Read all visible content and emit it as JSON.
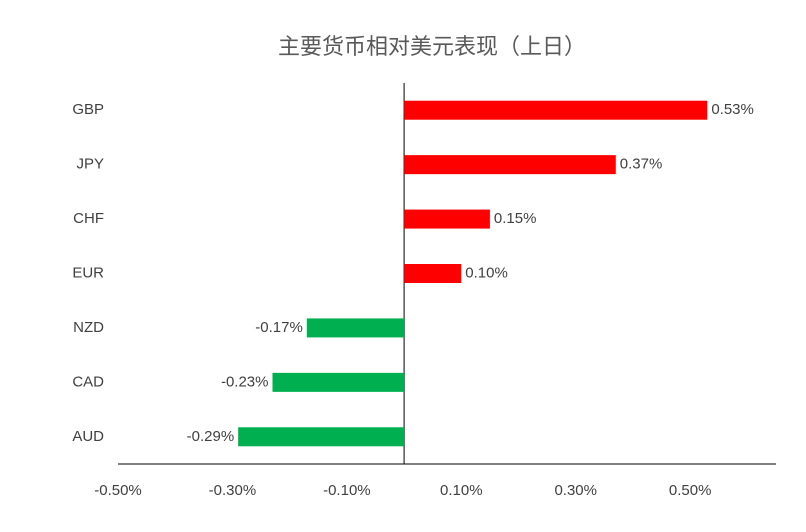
{
  "chart_data": {
    "type": "hbar",
    "title": "主要货币相对美元表现（上日）",
    "categories": [
      "GBP",
      "JPY",
      "CHF",
      "EUR",
      "NZD",
      "CAD",
      "AUD"
    ],
    "values": [
      0.53,
      0.37,
      0.15,
      0.1,
      -0.17,
      -0.23,
      -0.29
    ],
    "value_labels": [
      "0.53%",
      "0.37%",
      "0.15%",
      "0.10%",
      "-0.17%",
      "-0.23%",
      "-0.29%"
    ],
    "positive_color": "#ff0000",
    "negative_color": "#00b050",
    "xlim": [
      -0.5,
      0.65
    ],
    "xticks": [
      {
        "value": -0.5,
        "label": "-0.50%"
      },
      {
        "value": -0.3,
        "label": "-0.30%"
      },
      {
        "value": -0.1,
        "label": "-0.10%"
      },
      {
        "value": 0.1,
        "label": "0.10%"
      },
      {
        "value": 0.3,
        "label": "0.30%"
      },
      {
        "value": 0.5,
        "label": "0.50%"
      }
    ]
  }
}
